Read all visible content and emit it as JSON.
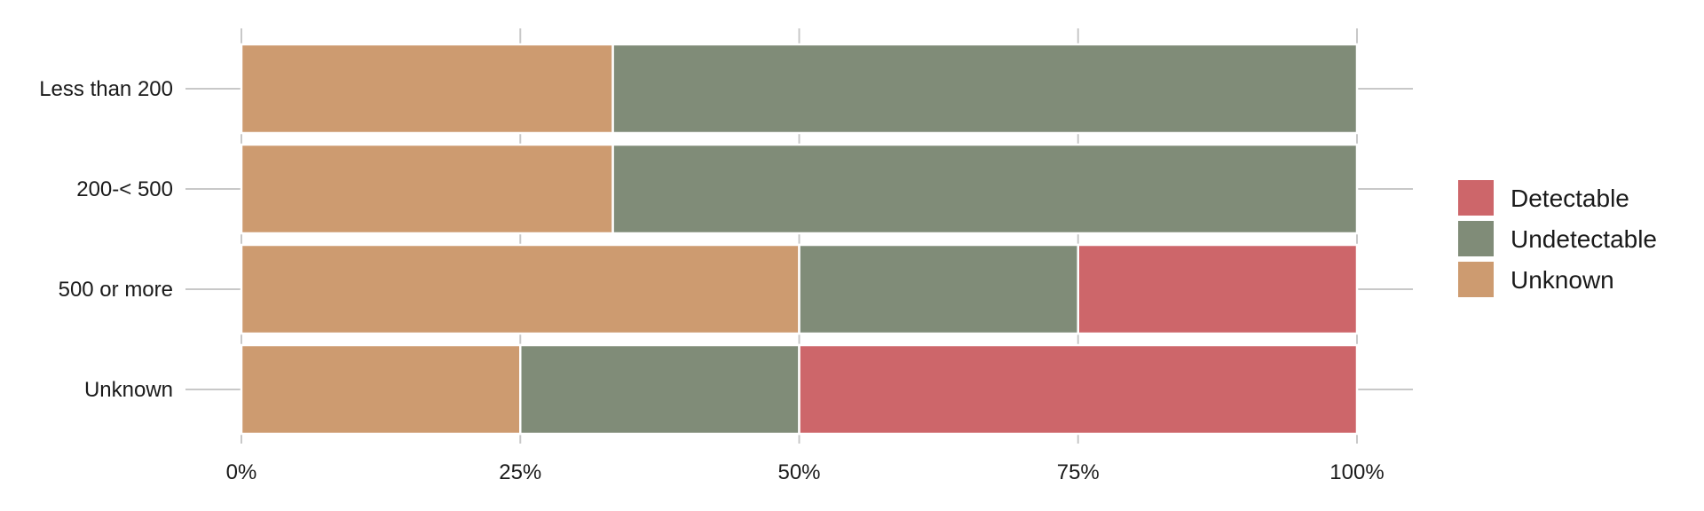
{
  "chart_data": {
    "type": "bar",
    "orientation": "horizontal",
    "stacked": true,
    "title": "",
    "xlabel": "",
    "ylabel": "",
    "xlim": [
      0,
      100
    ],
    "x_ticks": [
      "0%",
      "25%",
      "50%",
      "75%",
      "100%"
    ],
    "x_tick_values": [
      0,
      25,
      50,
      75,
      100
    ],
    "categories": [
      "Less than 200",
      "200-< 500",
      "500 or more",
      "Unknown"
    ],
    "series": [
      {
        "name": "Unknown",
        "color": "#CD9B70",
        "values": [
          33.3,
          33.3,
          50,
          25
        ]
      },
      {
        "name": "Undetectable",
        "color": "#808C78",
        "values": [
          66.7,
          66.7,
          25,
          25
        ]
      },
      {
        "name": "Detectable",
        "color": "#CD666A",
        "values": [
          0,
          0,
          25,
          50
        ]
      }
    ],
    "legend": {
      "position": "right",
      "items": [
        "Detectable",
        "Undetectable",
        "Unknown"
      ]
    },
    "grid": true
  }
}
